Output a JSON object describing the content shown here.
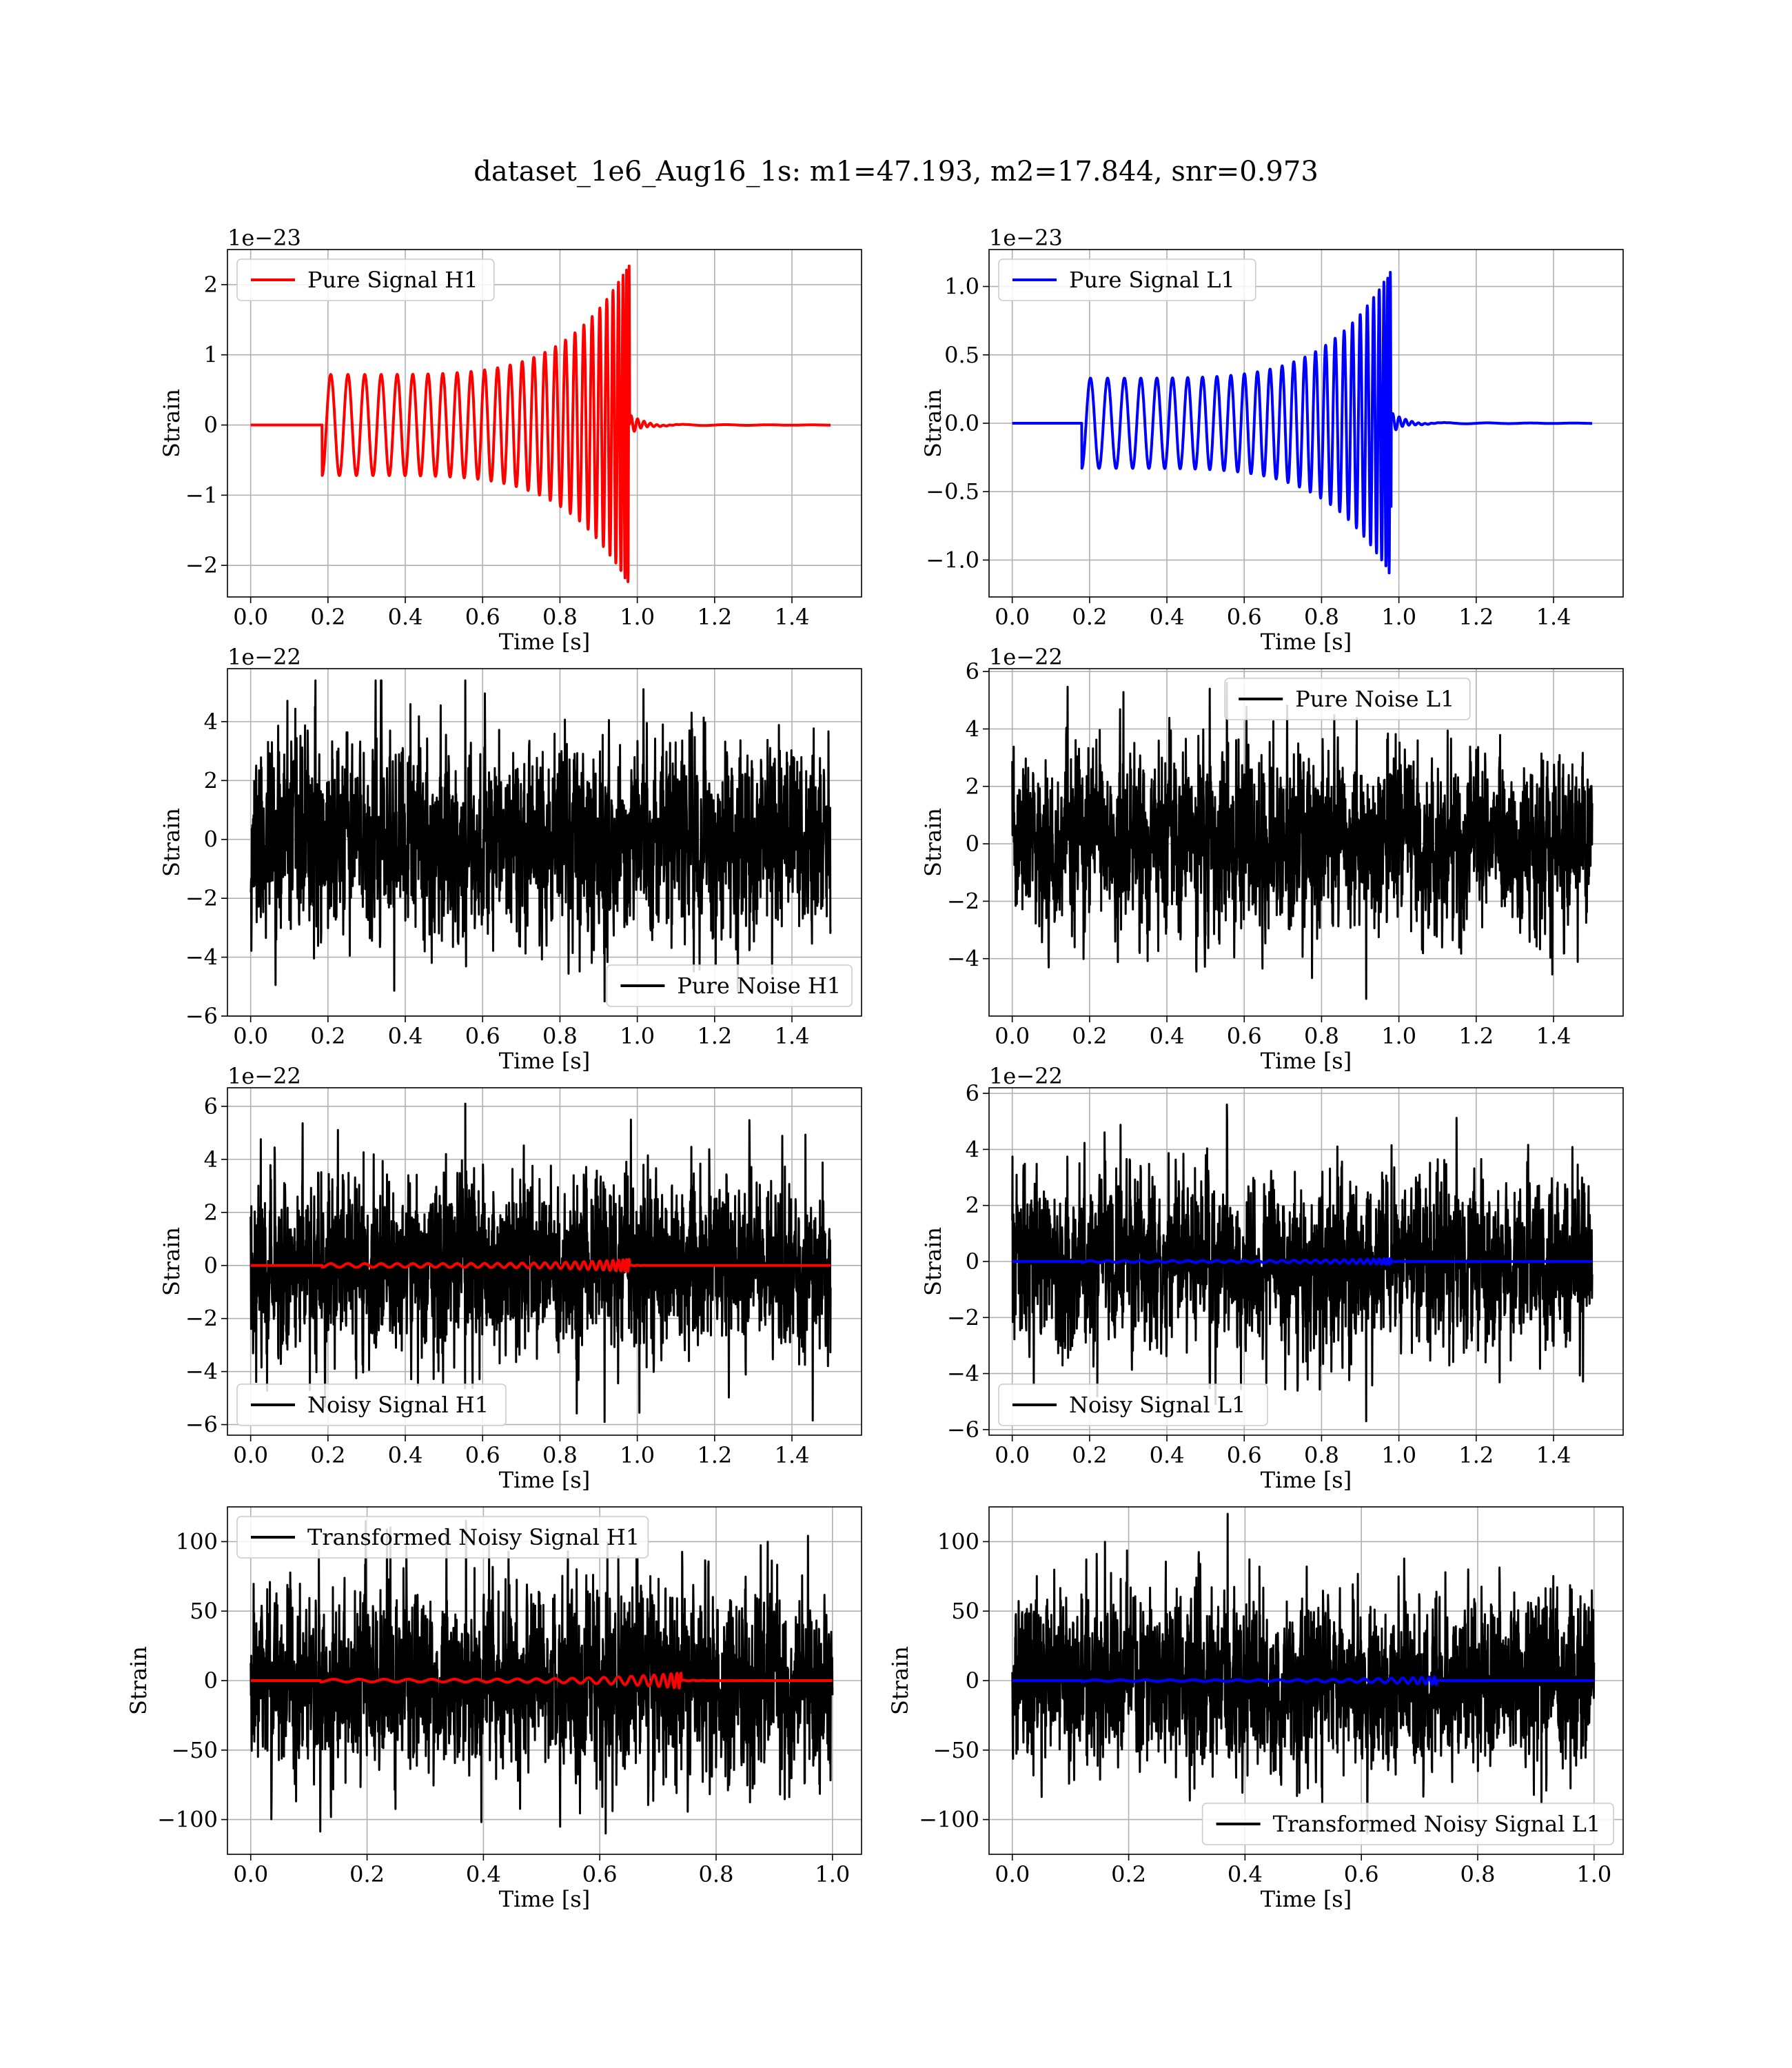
{
  "figure": {
    "suptitle": "dataset_1e6_Aug16_1s: m1=47.193, m2=17.844, snr=0.973"
  },
  "chart_data": [
    {
      "type": "line",
      "title": "",
      "xlabel": "Time [s]",
      "ylabel": "Strain",
      "offset_text": "1e−23",
      "xlim": [
        -0.06,
        1.58
      ],
      "ylim": [
        -2.45,
        2.5
      ],
      "xticks": [
        0,
        0.2,
        0.4,
        0.6,
        0.8,
        1.0,
        1.2,
        1.4
      ],
      "xtick_labels": [
        "0.0",
        "0.2",
        "0.4",
        "0.6",
        "0.8",
        "1.0",
        "1.2",
        "1.4"
      ],
      "yticks": [
        -2,
        -1,
        0,
        1,
        2
      ],
      "ytick_labels": [
        "−2",
        "−1",
        "0",
        "1",
        "2"
      ],
      "grid": true,
      "legend": "upper left",
      "series": [
        {
          "name": "Pure Signal H1",
          "color": "#ff0000",
          "kind": "chirp",
          "x_range": [
            0,
            1.5
          ],
          "start": 0.185,
          "merger": 0.98,
          "peak": 2.3,
          "start_amp": 0.72,
          "ringdown_amp": 0.15
        }
      ]
    },
    {
      "type": "line",
      "title": "",
      "xlabel": "Time [s]",
      "ylabel": "Strain",
      "offset_text": "1e−23",
      "xlim": [
        -0.06,
        1.58
      ],
      "ylim": [
        -1.27,
        1.27
      ],
      "xticks": [
        0,
        0.2,
        0.4,
        0.6,
        0.8,
        1.0,
        1.2,
        1.4
      ],
      "xtick_labels": [
        "0.0",
        "0.2",
        "0.4",
        "0.6",
        "0.8",
        "1.0",
        "1.2",
        "1.4"
      ],
      "yticks": [
        -1.0,
        -0.5,
        0.0,
        0.5,
        1.0
      ],
      "ytick_labels": [
        "−1.0",
        "−0.5",
        "0.0",
        "0.5",
        "1.0"
      ],
      "grid": true,
      "legend": "upper left",
      "series": [
        {
          "name": "Pure Signal L1",
          "color": "#0000ff",
          "kind": "chirp",
          "x_range": [
            0,
            1.5
          ],
          "start": 0.18,
          "merger": 0.98,
          "peak": 1.12,
          "start_amp": 0.33,
          "ringdown_amp": 0.08
        }
      ]
    },
    {
      "type": "line",
      "title": "",
      "xlabel": "Time [s]",
      "ylabel": "Strain",
      "offset_text": "1e−22",
      "xlim": [
        -0.06,
        1.58
      ],
      "ylim": [
        -6.0,
        5.8
      ],
      "xticks": [
        0,
        0.2,
        0.4,
        0.6,
        0.8,
        1.0,
        1.2,
        1.4
      ],
      "xtick_labels": [
        "0.0",
        "0.2",
        "0.4",
        "0.6",
        "0.8",
        "1.0",
        "1.2",
        "1.4"
      ],
      "yticks": [
        -6,
        -4,
        -2,
        0,
        2,
        4
      ],
      "ytick_labels": [
        "−6",
        "−4",
        "−2",
        "0",
        "2",
        "4"
      ],
      "grid": true,
      "legend": "lower right",
      "series": [
        {
          "name": "Pure Noise H1",
          "color": "#000000",
          "kind": "noise",
          "x_range": [
            0,
            1.5
          ],
          "sigma": 1.55,
          "max": 5.4,
          "min": -5.5,
          "seed": 11
        }
      ]
    },
    {
      "type": "line",
      "title": "",
      "xlabel": "Time [s]",
      "ylabel": "Strain",
      "offset_text": "1e−22",
      "xlim": [
        -0.06,
        1.58
      ],
      "ylim": [
        -6.0,
        6.1
      ],
      "xticks": [
        0,
        0.2,
        0.4,
        0.6,
        0.8,
        1.0,
        1.2,
        1.4
      ],
      "xtick_labels": [
        "0.0",
        "0.2",
        "0.4",
        "0.6",
        "0.8",
        "1.0",
        "1.2",
        "1.4"
      ],
      "yticks": [
        -4,
        -2,
        0,
        2,
        4,
        6
      ],
      "ytick_labels": [
        "−4",
        "−2",
        "0",
        "2",
        "4",
        "6"
      ],
      "grid": true,
      "legend": "upper center",
      "series": [
        {
          "name": "Pure Noise L1",
          "color": "#000000",
          "kind": "noise",
          "x_range": [
            0,
            1.5
          ],
          "sigma": 1.45,
          "max": 5.6,
          "min": -5.4,
          "seed": 23
        }
      ]
    },
    {
      "type": "line",
      "title": "",
      "xlabel": "Time [s]",
      "ylabel": "Strain",
      "offset_text": "1e−22",
      "xlim": [
        -0.06,
        1.58
      ],
      "ylim": [
        -6.4,
        6.7
      ],
      "xticks": [
        0,
        0.2,
        0.4,
        0.6,
        0.8,
        1.0,
        1.2,
        1.4
      ],
      "xtick_labels": [
        "0.0",
        "0.2",
        "0.4",
        "0.6",
        "0.8",
        "1.0",
        "1.2",
        "1.4"
      ],
      "yticks": [
        -6,
        -4,
        -2,
        0,
        2,
        4,
        6
      ],
      "ytick_labels": [
        "−6",
        "−4",
        "−2",
        "0",
        "2",
        "4",
        "6"
      ],
      "grid": true,
      "legend": "lower left",
      "series": [
        {
          "name": "Noisy Signal H1",
          "color": "#000000",
          "kind": "noise",
          "x_range": [
            0,
            1.5
          ],
          "sigma": 1.6,
          "max": 6.1,
          "min": -5.9,
          "seed": 37
        },
        {
          "name": "",
          "color": "#ff0000",
          "kind": "chirp",
          "x_range": [
            0,
            1.5
          ],
          "start": 0.185,
          "merger": 0.98,
          "peak": 0.23,
          "start_amp": 0.072,
          "ringdown_amp": 0.015
        }
      ]
    },
    {
      "type": "line",
      "title": "",
      "xlabel": "Time [s]",
      "ylabel": "Strain",
      "offset_text": "1e−22",
      "xlim": [
        -0.06,
        1.58
      ],
      "ylim": [
        -6.2,
        6.2
      ],
      "xticks": [
        0,
        0.2,
        0.4,
        0.6,
        0.8,
        1.0,
        1.2,
        1.4
      ],
      "xtick_labels": [
        "0.0",
        "0.2",
        "0.4",
        "0.6",
        "0.8",
        "1.0",
        "1.2",
        "1.4"
      ],
      "yticks": [
        -6,
        -4,
        -2,
        0,
        2,
        4,
        6
      ],
      "ytick_labels": [
        "−6",
        "−4",
        "−2",
        "0",
        "2",
        "4",
        "6"
      ],
      "grid": true,
      "legend": "lower left",
      "series": [
        {
          "name": "Noisy Signal L1",
          "color": "#000000",
          "kind": "noise",
          "x_range": [
            0,
            1.5
          ],
          "sigma": 1.45,
          "max": 5.6,
          "min": -5.7,
          "seed": 53
        },
        {
          "name": "",
          "color": "#0000ff",
          "kind": "chirp",
          "x_range": [
            0,
            1.5
          ],
          "start": 0.18,
          "merger": 0.98,
          "peak": 0.11,
          "start_amp": 0.033,
          "ringdown_amp": 0.008
        }
      ]
    },
    {
      "type": "line",
      "title": "",
      "xlabel": "Time [s]",
      "ylabel": "Strain",
      "offset_text": "",
      "xlim": [
        -0.04,
        1.05
      ],
      "ylim": [
        -125,
        125
      ],
      "xticks": [
        0,
        0.2,
        0.4,
        0.6,
        0.8,
        1.0
      ],
      "xtick_labels": [
        "0.0",
        "0.2",
        "0.4",
        "0.6",
        "0.8",
        "1.0"
      ],
      "yticks": [
        -100,
        -50,
        0,
        50,
        100
      ],
      "ytick_labels": [
        "−100",
        "−50",
        "0",
        "50",
        "100"
      ],
      "grid": true,
      "legend": "upper left",
      "series": [
        {
          "name": "Transformed Noisy Signal H1",
          "color": "#000000",
          "kind": "noise",
          "x_range": [
            0,
            1.0
          ],
          "sigma": 32,
          "max": 115,
          "min": -110,
          "seed": 71
        },
        {
          "name": "",
          "color": "#ff0000",
          "kind": "chirp",
          "x_range": [
            0,
            1.0
          ],
          "start": 0.12,
          "merger": 0.74,
          "peak": 5.5,
          "start_amp": 1.0,
          "ringdown_amp": 0.4
        }
      ]
    },
    {
      "type": "line",
      "title": "",
      "xlabel": "Time [s]",
      "ylabel": "Strain",
      "offset_text": "",
      "xlim": [
        -0.04,
        1.05
      ],
      "ylim": [
        -125,
        125
      ],
      "xticks": [
        0,
        0.2,
        0.4,
        0.6,
        0.8,
        1.0
      ],
      "xtick_labels": [
        "0.0",
        "0.2",
        "0.4",
        "0.6",
        "0.8",
        "1.0"
      ],
      "yticks": [
        -100,
        -50,
        0,
        50,
        100
      ],
      "ytick_labels": [
        "−100",
        "−50",
        "0",
        "50",
        "100"
      ],
      "grid": true,
      "legend": "lower right",
      "series": [
        {
          "name": "Transformed Noisy Signal L1",
          "color": "#000000",
          "kind": "noise",
          "x_range": [
            0,
            1.0
          ],
          "sigma": 30,
          "max": 120,
          "min": -110,
          "seed": 97
        },
        {
          "name": "",
          "color": "#0000ff",
          "kind": "chirp",
          "x_range": [
            0,
            1.0
          ],
          "start": 0.12,
          "merger": 0.73,
          "peak": 2.8,
          "start_amp": 0.6,
          "ringdown_amp": 0.2
        }
      ]
    }
  ]
}
